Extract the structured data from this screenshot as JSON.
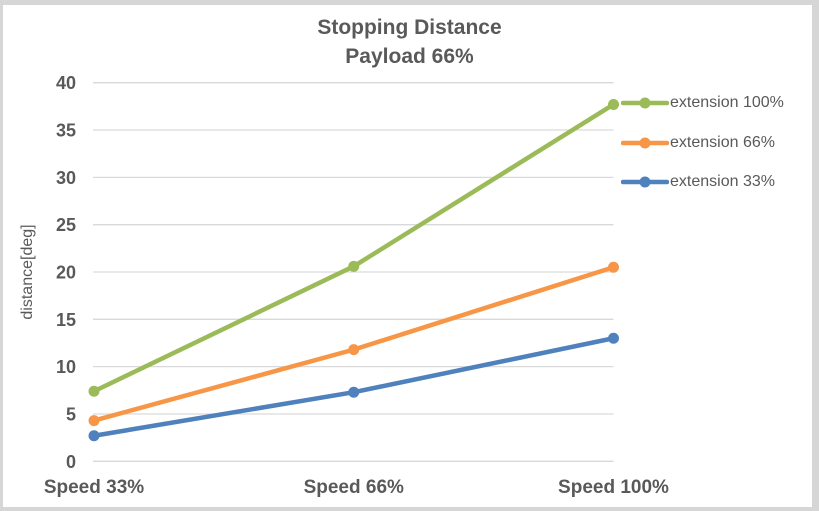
{
  "chart_data": {
    "type": "line",
    "title": "Stopping Distance",
    "subtitle": "Payload 66%",
    "ylabel": "distance[deg]",
    "xlabel": "",
    "categories": [
      "Speed 33%",
      "Speed 66%",
      "Speed 100%"
    ],
    "series": [
      {
        "name": "extension 100%",
        "color": "#9BBB59",
        "values": [
          7.4,
          20.6,
          37.7
        ]
      },
      {
        "name": "extension 66%",
        "color": "#F79646",
        "values": [
          4.3,
          11.8,
          20.5
        ]
      },
      {
        "name": "extension 33%",
        "color": "#4F81BD",
        "values": [
          2.7,
          7.3,
          13.0
        ]
      }
    ],
    "ylim": [
      0,
      40
    ],
    "ytick_step": 5,
    "yticks": [
      "0",
      "5",
      "10",
      "15",
      "20",
      "25",
      "30",
      "35",
      "40"
    ],
    "grid": "horizontal",
    "legend_position": "right",
    "colors": {
      "text": "#595959",
      "grid": "#D9D9D9",
      "plot_background": "#FFFFFF",
      "frame_border": "#D6D6D6"
    }
  }
}
